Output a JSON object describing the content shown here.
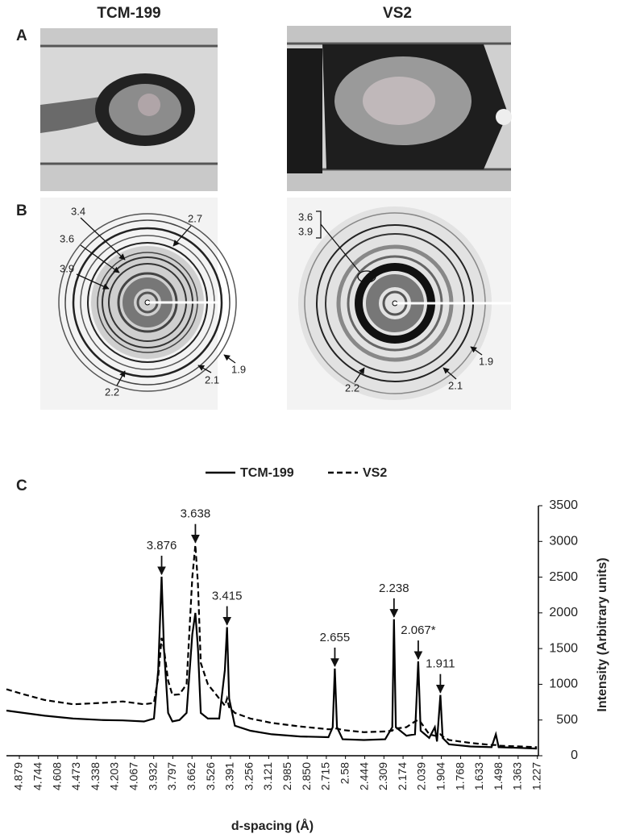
{
  "headers": [
    "TCM-199",
    "VS2"
  ],
  "panel_labels": [
    "A",
    "B",
    "C"
  ],
  "diffraction_labels": {
    "left": [
      "3.4",
      "3.6",
      "3.9",
      "2.7",
      "1.9",
      "2.1",
      "2.2"
    ],
    "right": [
      "3.6",
      "3.9",
      "1.9",
      "2.1",
      "2.2"
    ]
  },
  "chart_data": {
    "type": "line",
    "x_label": "d-spacing (Å)",
    "y_label": "Intensity (Arbitrary units)",
    "y_axis_side": "right",
    "x_reversed": true,
    "legend": "top",
    "x": [
      4.97,
      4.85,
      4.7,
      4.5,
      4.3,
      4.15,
      4.0,
      3.93,
      3.9,
      3.876,
      3.86,
      3.83,
      3.8,
      3.75,
      3.7,
      3.66,
      3.638,
      3.62,
      3.6,
      3.55,
      3.47,
      3.43,
      3.415,
      3.4,
      3.36,
      3.25,
      3.1,
      2.9,
      2.7,
      2.67,
      2.655,
      2.64,
      2.6,
      2.45,
      2.3,
      2.25,
      2.238,
      2.225,
      2.15,
      2.09,
      2.067,
      2.05,
      1.99,
      1.95,
      1.935,
      1.911,
      1.895,
      1.85,
      1.7,
      1.55,
      1.52,
      1.5,
      1.35,
      1.23
    ],
    "series": [
      {
        "name": "TCM-199",
        "color": "#000000",
        "line_style": "solid",
        "values": [
          632,
          600,
          560,
          520,
          500,
          495,
          480,
          520,
          1200,
          2506,
          1500,
          600,
          480,
          500,
          600,
          1700,
          2000,
          1500,
          600,
          520,
          520,
          1200,
          1800,
          800,
          420,
          350,
          300,
          270,
          260,
          400,
          1220,
          400,
          230,
          220,
          230,
          400,
          1910,
          400,
          280,
          300,
          1320,
          350,
          250,
          400,
          200,
          850,
          250,
          160,
          130,
          120,
          300,
          120,
          110,
          100
        ]
      },
      {
        "name": "VS2",
        "color": "#000000",
        "line_style": "dashed",
        "values": [
          930,
          860,
          780,
          720,
          740,
          760,
          720,
          740,
          1100,
          1650,
          1500,
          1050,
          850,
          860,
          1000,
          2500,
          2950,
          2400,
          1300,
          1000,
          800,
          700,
          800,
          680,
          600,
          520,
          460,
          410,
          370,
          370,
          380,
          380,
          360,
          330,
          340,
          350,
          380,
          380,
          400,
          480,
          500,
          470,
          300,
          280,
          280,
          300,
          270,
          220,
          180,
          150,
          150,
          140,
          130,
          120
        ]
      }
    ],
    "annotations": [
      {
        "text": "3.876",
        "x": 3.876,
        "y": 2506
      },
      {
        "text": "3.638",
        "x": 3.638,
        "y": 2950
      },
      {
        "text": "3.415",
        "x": 3.415,
        "y": 1800
      },
      {
        "text": "2.655",
        "x": 2.655,
        "y": 1220
      },
      {
        "text": "2.238",
        "x": 2.238,
        "y": 1910
      },
      {
        "text": "2.067*",
        "x": 2.067,
        "y": 1320
      },
      {
        "text": "1.911",
        "x": 1.911,
        "y": 850
      }
    ],
    "xlim": [
      4.97,
      1.22
    ],
    "ylim": [
      0,
      3500
    ],
    "yticks": [
      0,
      500,
      1000,
      1500,
      2000,
      2500,
      3000,
      3500
    ],
    "xticks": [
      4.879,
      4.744,
      4.608,
      4.473,
      4.338,
      4.203,
      4.067,
      3.932,
      3.797,
      3.662,
      3.526,
      3.391,
      3.256,
      3.121,
      2.985,
      {
        "value": 2.85,
        "label": "2.850"
      },
      2.715,
      2.58,
      2.444,
      2.309,
      2.174,
      2.039,
      1.904,
      1.768,
      1.633,
      1.498,
      1.363,
      1.227
    ]
  }
}
